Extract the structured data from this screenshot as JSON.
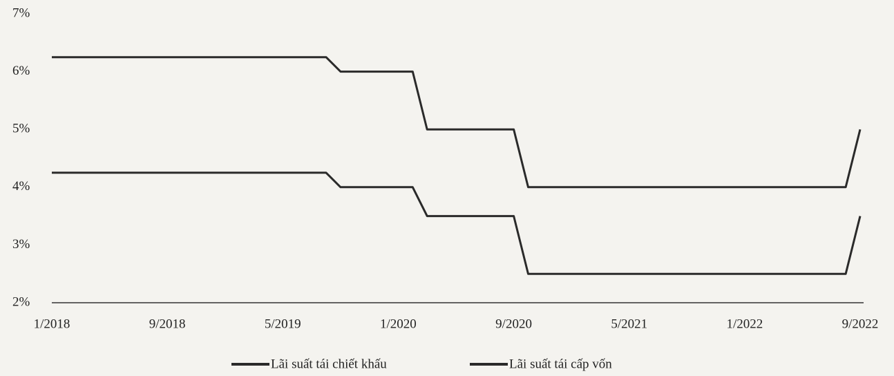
{
  "chart_data": {
    "type": "line",
    "x": [
      "1/2018",
      "8/2019",
      "9/2019",
      "2/2020",
      "3/2020",
      "9/2020",
      "10/2020",
      "8/2022",
      "9/2022"
    ],
    "series": [
      {
        "name": "Lãi suất tái chiết khấu",
        "color": "#2a2a2a",
        "values": [
          4.25,
          4.25,
          4.0,
          4.0,
          3.5,
          3.5,
          2.5,
          2.5,
          3.5
        ]
      },
      {
        "name": "Lãi suất tái cấp vốn",
        "color": "#2a2a2a",
        "values": [
          6.25,
          6.25,
          6.0,
          6.0,
          5.0,
          5.0,
          4.0,
          4.0,
          5.0
        ]
      }
    ],
    "xticks": [
      "1/2018",
      "9/2018",
      "5/2019",
      "1/2020",
      "9/2020",
      "5/2021",
      "1/2022",
      "9/2022"
    ],
    "ylim": [
      2,
      7
    ],
    "yticks": [
      {
        "value": 2,
        "label": "2%"
      },
      {
        "value": 3,
        "label": "3%"
      },
      {
        "value": 4,
        "label": "4%"
      },
      {
        "value": 5,
        "label": "5%"
      },
      {
        "value": 6,
        "label": "6%"
      },
      {
        "value": 7,
        "label": "7%"
      }
    ],
    "grid": false,
    "legend": "bottom"
  }
}
